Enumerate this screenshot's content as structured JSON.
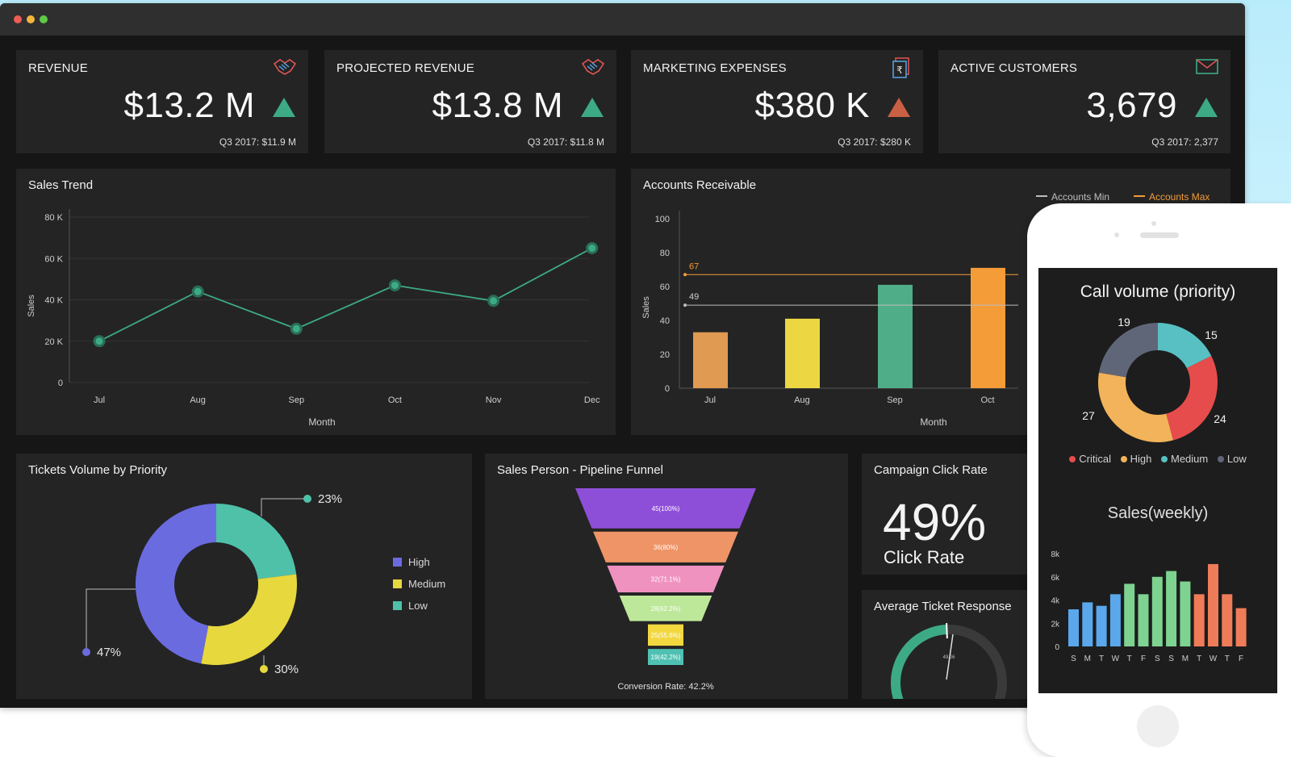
{
  "kpis": [
    {
      "title": "REVENUE",
      "value": "$13.2 M",
      "sub": "Q3 2017: $11.9 M",
      "trend": "up",
      "icon": "handshake-icon"
    },
    {
      "title": "PROJECTED REVENUE",
      "value": "$13.8 M",
      "sub": "Q3 2017: $11.8 M",
      "trend": "up",
      "icon": "handshake-icon"
    },
    {
      "title": "MARKETING EXPENSES",
      "value": "$380 K",
      "sub": "Q3 2017: $280 K",
      "trend": "up-bad",
      "icon": "rupee-document-icon"
    },
    {
      "title": "ACTIVE CUSTOMERS",
      "value": "3,679",
      "sub": "Q3 2017: 2,377",
      "trend": "up",
      "icon": "envelope-icon"
    }
  ],
  "colors": {
    "up": "#3daa86",
    "upBad": "#c95f43",
    "line": "#3daa86"
  },
  "sales_trend": {
    "title": "Sales Trend",
    "chart_data": {
      "type": "line",
      "categories": [
        "Jul",
        "Aug",
        "Sep",
        "Oct",
        "Nov",
        "Dec"
      ],
      "values": [
        20000,
        44000,
        26000,
        47000,
        39500,
        65000
      ],
      "yticks": [
        "0",
        "20 K",
        "40 K",
        "60 K",
        "80 K"
      ],
      "ylim": [
        0,
        80000
      ],
      "xlabel": "Month",
      "ylabel": "Sales"
    }
  },
  "accounts": {
    "title": "Accounts Receivable",
    "legend": {
      "min": "Accounts Min",
      "max": "Accounts Max"
    },
    "chart_data": {
      "type": "bar",
      "categories": [
        "Jul",
        "Aug",
        "Sep",
        "Oct"
      ],
      "values": [
        33,
        41,
        61,
        71
      ],
      "colors": [
        "#e09a52",
        "#ecd743",
        "#4fae87",
        "#f39c38"
      ],
      "yticks": [
        "0",
        "20",
        "40",
        "60",
        "80",
        "100"
      ],
      "ylim": [
        0,
        100
      ],
      "min_line": 49,
      "max_line": 67,
      "min_label": "49",
      "max_label": "67",
      "xlabel": "Month",
      "ylabel": "Sales"
    }
  },
  "tickets": {
    "title": "Tickets Volume by Priority",
    "chart_data": {
      "type": "pie",
      "labels": [
        "High",
        "Medium",
        "Low"
      ],
      "values": [
        47,
        30,
        23
      ],
      "pct_labels": [
        "47%",
        "30%",
        "23%"
      ],
      "colors": [
        "#6b6be0",
        "#e7d83e",
        "#4fc1a9"
      ]
    }
  },
  "funnel": {
    "title": "Sales Person - Pipeline Funnel",
    "chart_data": {
      "type": "funnel",
      "stages": [
        {
          "label": "45(100%)",
          "value": 45,
          "color": "#8e4fd8"
        },
        {
          "label": "36(80%)",
          "value": 36,
          "color": "#ef9466"
        },
        {
          "label": "32(71.1%)",
          "value": 32,
          "color": "#f092c0"
        },
        {
          "label": "28(62.2%)",
          "value": 28,
          "color": "#bde89a"
        },
        {
          "label": "25(55.6%)",
          "value": 25,
          "color": "#f2d73f"
        },
        {
          "label": "19(42.2%)",
          "value": 19,
          "color": "#4fc1b3"
        }
      ],
      "footer": "Conversion Rate: 42.2%"
    }
  },
  "campaign": {
    "title": "Campaign Click Rate",
    "value": "49%",
    "label": "Click Rate"
  },
  "response": {
    "title": "Average Ticket Response",
    "gauge_value": 49,
    "gauge_label": "49.06"
  },
  "phone": {
    "call": {
      "title": "Call volume (priority)",
      "chart_data": {
        "type": "pie",
        "labels": [
          "Critical",
          "High",
          "Medium",
          "Low"
        ],
        "values": [
          24,
          27,
          15,
          19
        ],
        "value_labels": [
          "24",
          "27",
          "15",
          "19"
        ],
        "colors": [
          "#e64c4c",
          "#f2b35a",
          "#58c0c2",
          "#5f6678"
        ]
      }
    },
    "weekly": {
      "title": "Sales(weekly)",
      "chart_data": {
        "type": "bar",
        "categories": [
          "S",
          "M",
          "T",
          "W",
          "T",
          "F",
          "S",
          "S",
          "M",
          "T",
          "W",
          "T",
          "F"
        ],
        "values": [
          3200,
          3800,
          3500,
          4500,
          5400,
          4500,
          6000,
          6500,
          5600,
          4500,
          7100,
          4500,
          3300
        ],
        "colors": [
          "#5aa7ec",
          "#5aa7ec",
          "#5aa7ec",
          "#5aa7ec",
          "#7ed391",
          "#7ed391",
          "#7ed391",
          "#7ed391",
          "#7ed391",
          "#ef7c59",
          "#ef7c59",
          "#ef7c59",
          "#ef7c59"
        ],
        "yticks": [
          "0",
          "2k",
          "4k",
          "6k",
          "8k"
        ],
        "ylim": [
          0,
          8000
        ]
      }
    }
  }
}
